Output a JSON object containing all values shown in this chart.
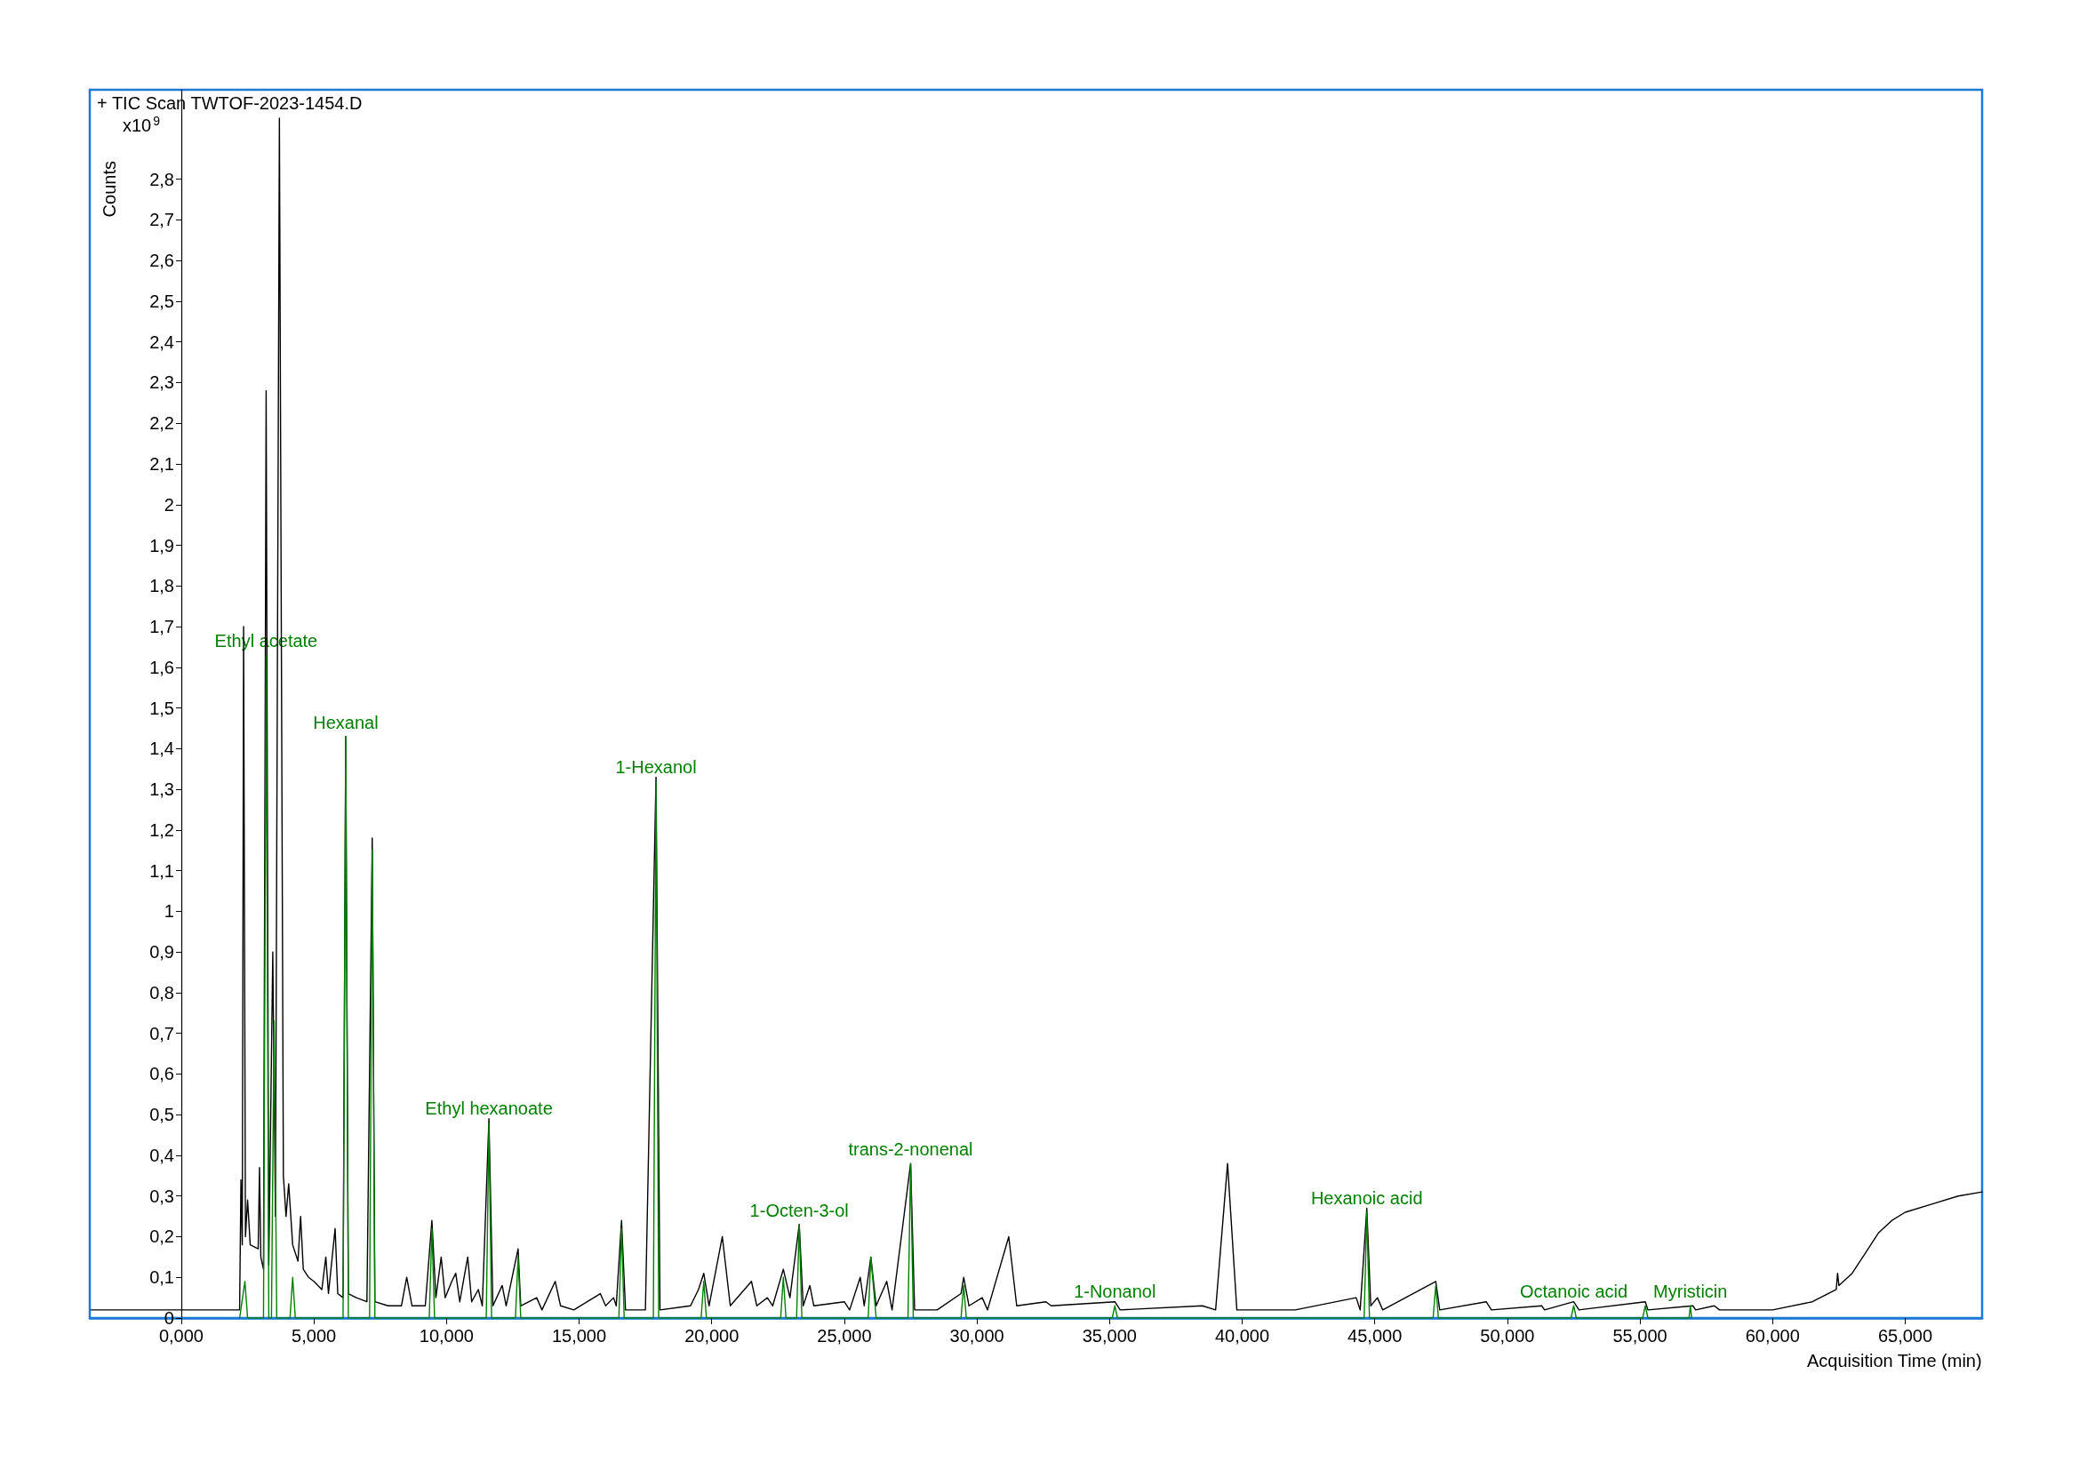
{
  "chart_data": {
    "type": "line",
    "title": "+ TIC Scan TWTOF-2023-1454.D",
    "xlabel": "Acquisition Time (min)",
    "ylabel": "Counts",
    "annotations": [
      "x10$^{9}$",
      {
        "text": "Ethyl acetate",
        "x": 3.2,
        "y": 1.63
      },
      {
        "text": "Hexanal",
        "x": 6.2,
        "y": 1.43
      },
      {
        "text": "Ethyl hexanoate",
        "x": 11.6,
        "y": 0.48
      },
      {
        "text": "1-Hexanol",
        "x": 17.9,
        "y": 1.32
      },
      {
        "text": "1-Octen-3-ol",
        "x": 23.3,
        "y": 0.23
      },
      {
        "text": "trans-2-nonenal",
        "x": 27.5,
        "y": 0.38
      },
      {
        "text": "1-Nonanol",
        "x": 35.2,
        "y": 0.03
      },
      {
        "text": "Hexanoic acid",
        "x": 44.7,
        "y": 0.26
      },
      {
        "text": "Octanoic acid",
        "x": 52.5,
        "y": 0.03
      },
      {
        "text": "Myristicin",
        "x": 56.9,
        "y": 0.03
      }
    ],
    "xlim": [
      -3.45,
      67.9
    ],
    "ylim": [
      0,
      3.02
    ],
    "xticks": [
      {
        "value": 0,
        "label": "0,000"
      },
      {
        "value": 5,
        "label": "5,000"
      },
      {
        "value": 10,
        "label": "10,000"
      },
      {
        "value": 15,
        "label": "15,000"
      },
      {
        "value": 20,
        "label": "20,000"
      },
      {
        "value": 25,
        "label": "25,000"
      },
      {
        "value": 30,
        "label": "30,000"
      },
      {
        "value": 35,
        "label": "35,000"
      },
      {
        "value": 40,
        "label": "40,000"
      },
      {
        "value": 45,
        "label": "45,000"
      },
      {
        "value": 50,
        "label": "50,000"
      },
      {
        "value": 55,
        "label": "55,000"
      },
      {
        "value": 60,
        "label": "60,000"
      },
      {
        "value": 65,
        "label": "65,000"
      }
    ],
    "yticks": [
      0,
      {
        "value": 0.1,
        "label": "0,1"
      },
      {
        "value": 0.2,
        "label": "0,2"
      },
      {
        "value": 0.3,
        "label": "0,3"
      },
      {
        "value": 0.4,
        "label": "0,4"
      },
      {
        "value": 0.5,
        "label": "0,5"
      },
      {
        "value": 0.6,
        "label": "0,6"
      },
      {
        "value": 0.7,
        "label": "0,7"
      },
      {
        "value": 0.8,
        "label": "0,8"
      },
      {
        "value": 0.9,
        "label": "0,9"
      },
      1,
      {
        "value": 1.1,
        "label": "1,1"
      },
      {
        "value": 1.2,
        "label": "1,2"
      },
      {
        "value": 1.3,
        "label": "1,3"
      },
      {
        "value": 1.4,
        "label": "1,4"
      },
      {
        "value": 1.5,
        "label": "1,5"
      },
      {
        "value": 1.6,
        "label": "1,6"
      },
      {
        "value": 1.7,
        "label": "1,7"
      },
      {
        "value": 1.8,
        "label": "1,8"
      },
      {
        "value": 1.9,
        "label": "1,9"
      },
      2,
      {
        "value": 2.1,
        "label": "2,1"
      },
      {
        "value": 2.2,
        "label": "2,2"
      },
      {
        "value": 2.3,
        "label": "2,3"
      },
      {
        "value": 2.4,
        "label": "2,4"
      },
      {
        "value": 2.5,
        "label": "2,5"
      },
      {
        "value": 2.6,
        "label": "2,6"
      },
      {
        "value": 2.7,
        "label": "2,7"
      },
      {
        "value": 2.8,
        "label": "2,8"
      }
    ],
    "grid": false,
    "marker": "none",
    "line_style": "solid",
    "series": [
      {
        "color": "#000000",
        "x": [
          -3.4,
          2.2,
          2.25,
          2.3,
          2.35,
          2.42,
          2.5,
          2.6,
          2.9,
          2.95,
          3.0,
          3.1,
          3.2,
          3.3,
          3.45,
          3.55,
          3.7,
          3.85,
          3.95,
          4.05,
          4.2,
          4.4,
          4.5,
          4.6,
          4.8,
          5.0,
          5.3,
          5.45,
          5.55,
          5.8,
          5.9,
          6.1,
          6.2,
          6.3,
          6.6,
          7.0,
          7.2,
          7.3,
          7.8,
          8.3,
          8.5,
          8.7,
          9.2,
          9.45,
          9.6,
          9.8,
          9.95,
          10.2,
          10.35,
          10.5,
          10.8,
          10.95,
          11.2,
          11.35,
          11.6,
          11.75,
          12.1,
          12.25,
          12.7,
          12.8,
          13.4,
          13.6,
          14.1,
          14.3,
          14.8,
          15.8,
          16.0,
          16.3,
          16.4,
          16.6,
          16.75,
          17.5,
          17.9,
          18.05,
          19.2,
          19.5,
          19.7,
          19.9,
          20.4,
          20.7,
          21.5,
          21.7,
          22.1,
          22.3,
          22.7,
          22.95,
          23.3,
          23.45,
          23.7,
          23.85,
          25.0,
          25.2,
          25.6,
          25.75,
          26.0,
          26.2,
          26.6,
          26.8,
          27.5,
          27.65,
          28.5,
          29.4,
          29.5,
          29.7,
          30.2,
          30.4,
          31.2,
          31.5,
          32.6,
          32.8,
          35.2,
          35.4,
          38.5,
          39.0,
          39.45,
          39.8,
          42.0,
          44.3,
          44.45,
          44.7,
          44.85,
          45.1,
          45.3,
          47.3,
          47.45,
          49.2,
          49.4,
          51.3,
          51.4,
          52.5,
          52.7,
          55.2,
          55.3,
          57.0,
          57.1,
          57.8,
          58.0,
          60.0,
          61.5,
          62.4,
          62.45,
          62.5,
          63.0,
          63.5,
          64.0,
          64.5,
          65.0,
          66.0,
          67.0,
          67.9
        ],
        "values": [
          0.02,
          0.02,
          0.34,
          0.18,
          1.7,
          0.2,
          0.29,
          0.18,
          0.17,
          0.37,
          0.15,
          0.12,
          2.28,
          0.13,
          0.9,
          0.25,
          2.95,
          0.35,
          0.25,
          0.33,
          0.18,
          0.14,
          0.25,
          0.12,
          0.1,
          0.09,
          0.07,
          0.15,
          0.06,
          0.22,
          0.06,
          0.05,
          1.43,
          0.06,
          0.05,
          0.04,
          1.18,
          0.04,
          0.03,
          0.03,
          0.1,
          0.03,
          0.03,
          0.24,
          0.05,
          0.15,
          0.05,
          0.09,
          0.11,
          0.04,
          0.15,
          0.04,
          0.07,
          0.03,
          0.49,
          0.03,
          0.08,
          0.03,
          0.17,
          0.03,
          0.05,
          0.02,
          0.09,
          0.03,
          0.02,
          0.06,
          0.03,
          0.05,
          0.03,
          0.24,
          0.02,
          0.02,
          1.33,
          0.02,
          0.03,
          0.07,
          0.11,
          0.03,
          0.2,
          0.03,
          0.09,
          0.03,
          0.05,
          0.03,
          0.12,
          0.05,
          0.23,
          0.03,
          0.08,
          0.03,
          0.04,
          0.02,
          0.1,
          0.03,
          0.15,
          0.03,
          0.09,
          0.02,
          0.38,
          0.02,
          0.02,
          0.06,
          0.1,
          0.03,
          0.05,
          0.02,
          0.2,
          0.03,
          0.04,
          0.03,
          0.04,
          0.02,
          0.03,
          0.02,
          0.38,
          0.02,
          0.02,
          0.05,
          0.02,
          0.27,
          0.03,
          0.05,
          0.02,
          0.09,
          0.02,
          0.04,
          0.02,
          0.03,
          0.02,
          0.04,
          0.02,
          0.04,
          0.02,
          0.03,
          0.02,
          0.03,
          0.02,
          0.02,
          0.04,
          0.07,
          0.11,
          0.08,
          0.11,
          0.16,
          0.21,
          0.24,
          0.26,
          0.28,
          0.3,
          0.31
        ]
      },
      {
        "color": "#008000",
        "x": [
          2.2,
          2.4,
          2.5,
          3.1,
          3.2,
          3.3,
          3.4,
          3.5,
          3.6,
          4.1,
          4.2,
          4.3,
          6.1,
          6.2,
          6.3,
          7.1,
          7.2,
          7.3,
          9.35,
          9.45,
          9.55,
          11.5,
          11.6,
          11.7,
          12.6,
          12.7,
          12.8,
          16.5,
          16.6,
          16.7,
          17.8,
          17.9,
          18.0,
          19.6,
          19.7,
          19.8,
          22.6,
          22.7,
          22.8,
          23.2,
          23.3,
          23.4,
          25.9,
          26.0,
          26.2,
          27.4,
          27.5,
          27.6,
          29.4,
          29.5,
          29.6,
          35.1,
          35.2,
          35.3,
          44.6,
          44.7,
          44.8,
          47.2,
          47.3,
          47.4,
          52.4,
          52.5,
          52.6,
          55.1,
          55.2,
          55.3,
          56.85,
          56.9,
          56.95
        ],
        "values": [
          0,
          0.09,
          0,
          0,
          1.63,
          0,
          0,
          0.73,
          0,
          0,
          0.1,
          0,
          0,
          1.43,
          0,
          0,
          1.15,
          0,
          0,
          0.22,
          0,
          0,
          0.48,
          0,
          0,
          0.15,
          0,
          0,
          0.22,
          0,
          0,
          1.32,
          0,
          0,
          0.09,
          0,
          0,
          0.1,
          0,
          0,
          0.23,
          0,
          0,
          0.15,
          0,
          0,
          0.38,
          0,
          0,
          0.08,
          0,
          0,
          0.03,
          0,
          0,
          0.26,
          0,
          0,
          0.08,
          0,
          0,
          0.03,
          0,
          0,
          0.03,
          0,
          0,
          0.03,
          0
        ]
      }
    ]
  }
}
